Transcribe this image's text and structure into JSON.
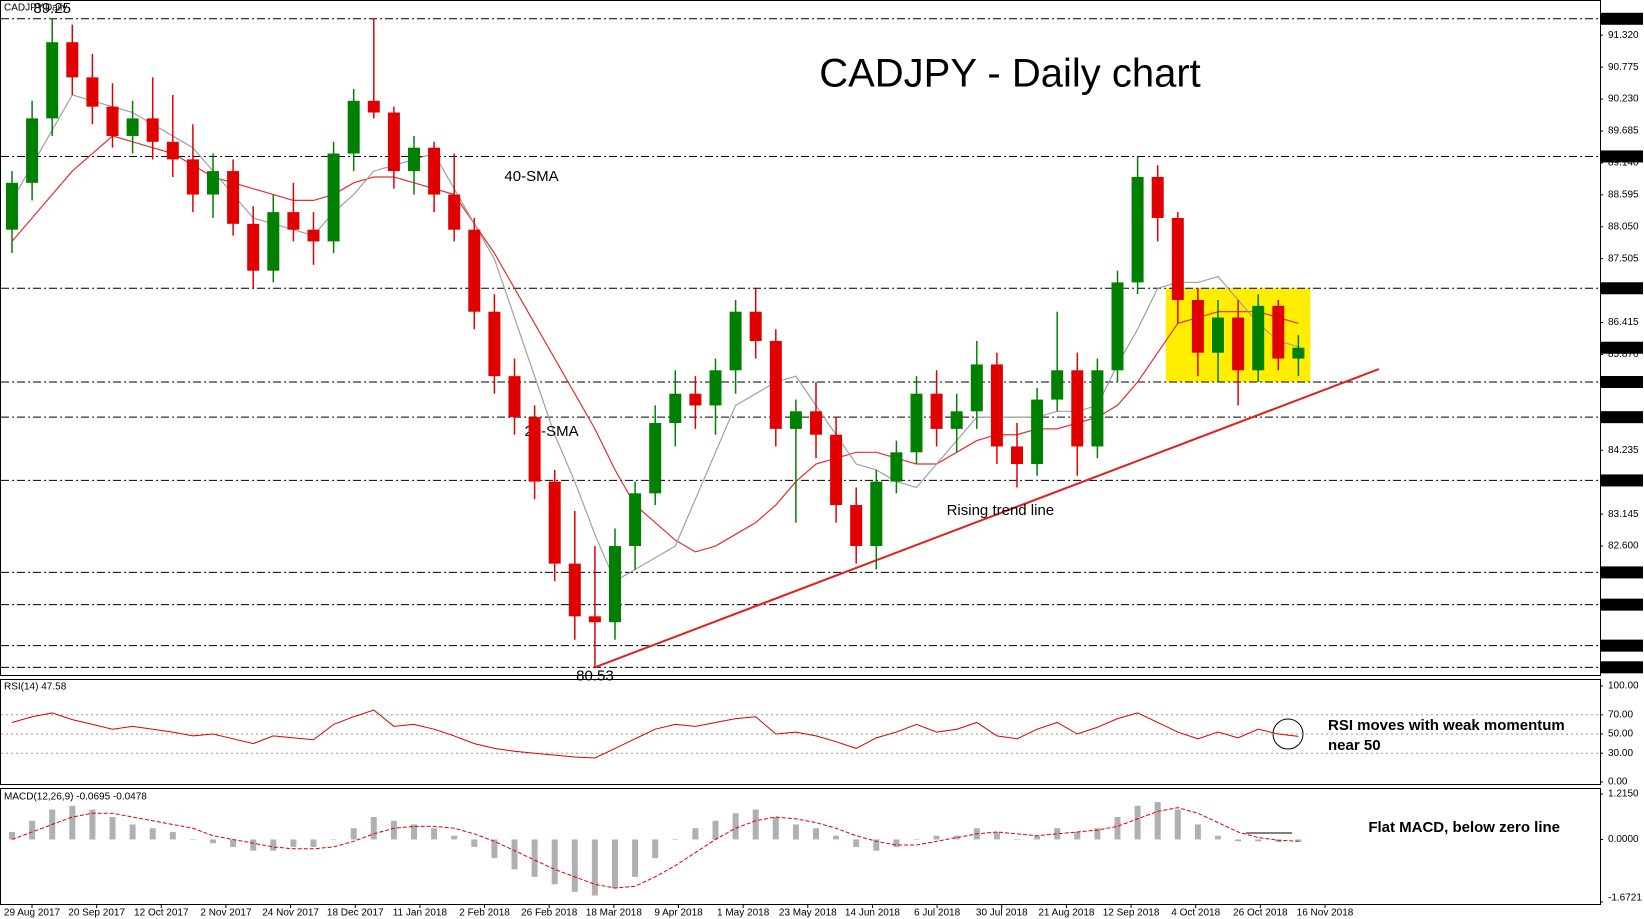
{
  "chart_data": {
    "type": "candlestick",
    "title": "CADJPY - Daily chart",
    "symbol_label": "CADJPY,Daily",
    "up_color": "#008000",
    "down_color": "#e00000",
    "x_labels": [
      "29 Aug 2017",
      "20 Sep 2017",
      "12 Oct 2017",
      "2 Nov 2017",
      "24 Nov 2017",
      "18 Dec 2017",
      "11 Jan 2018",
      "2 Feb 2018",
      "26 Feb 2018",
      "18 Mar 2018",
      "9 Apr 2018",
      "1 May 2018",
      "23 May 2018",
      "14 Jun 2018",
      "6 Jul 2018",
      "30 Jul 2018",
      "21 Aug 2018",
      "12 Sep 2018",
      "4 Oct 2018",
      "26 Oct 2018",
      "16 Nov 2018"
    ],
    "ohlc": {
      "open": [
        88.0,
        88.8,
        89.9,
        91.2,
        90.6,
        90.1,
        89.6,
        89.9,
        89.5,
        89.2,
        88.6,
        89.0,
        88.1,
        87.3,
        88.3,
        88.0,
        87.8,
        89.3,
        90.2,
        90.0,
        89.0,
        89.4,
        88.6,
        88.0,
        86.6,
        85.5,
        84.8,
        83.7,
        82.3,
        81.4,
        81.3,
        82.6,
        83.5,
        84.7,
        85.2,
        85.0,
        85.6,
        86.6,
        86.1,
        84.6,
        84.9,
        84.5,
        83.3,
        82.6,
        83.7,
        84.2,
        85.2,
        84.6,
        84.9,
        85.7,
        84.3,
        84.0,
        85.1,
        85.6,
        84.3,
        85.6,
        87.1,
        88.9,
        88.2,
        86.8,
        85.9,
        86.5,
        85.6,
        86.7,
        85.8
      ],
      "high": [
        89.0,
        90.2,
        91.6,
        91.5,
        91.0,
        90.5,
        90.2,
        90.6,
        90.3,
        89.8,
        89.3,
        89.2,
        88.4,
        88.6,
        88.8,
        88.3,
        89.5,
        90.4,
        91.6,
        90.1,
        89.6,
        89.5,
        89.3,
        88.2,
        86.9,
        85.8,
        85.0,
        83.9,
        83.2,
        82.6,
        82.9,
        83.7,
        85.0,
        85.6,
        85.5,
        85.8,
        86.8,
        87.0,
        86.3,
        85.1,
        85.4,
        84.8,
        83.6,
        83.9,
        84.4,
        85.5,
        85.6,
        85.2,
        86.1,
        85.9,
        84.7,
        85.3,
        86.6,
        85.9,
        85.8,
        87.3,
        89.25,
        89.1,
        88.3,
        87.0,
        86.8,
        86.8,
        86.9,
        86.8,
        86.2
      ],
      "low": [
        87.6,
        88.5,
        89.6,
        90.3,
        89.8,
        89.4,
        89.3,
        89.2,
        88.9,
        88.3,
        88.2,
        87.9,
        87.0,
        87.1,
        87.8,
        87.4,
        87.6,
        89.0,
        89.9,
        88.7,
        88.6,
        88.3,
        87.8,
        86.3,
        85.2,
        84.5,
        83.4,
        82.0,
        81.0,
        80.53,
        81.0,
        82.2,
        83.3,
        84.3,
        84.6,
        84.5,
        85.2,
        85.8,
        84.3,
        83.0,
        84.1,
        83.0,
        82.3,
        82.2,
        83.5,
        84.0,
        84.3,
        84.2,
        84.6,
        84.0,
        83.6,
        83.8,
        84.9,
        83.8,
        84.1,
        85.4,
        86.9,
        87.8,
        86.4,
        85.5,
        85.4,
        85.0,
        85.4,
        85.6,
        85.5
      ],
      "close": [
        88.8,
        89.9,
        91.2,
        90.6,
        90.1,
        89.6,
        89.9,
        89.5,
        89.2,
        88.6,
        89.0,
        88.1,
        87.3,
        88.3,
        88.0,
        87.8,
        89.3,
        90.2,
        90.0,
        89.0,
        89.4,
        88.6,
        88.0,
        86.6,
        85.5,
        84.8,
        83.7,
        82.3,
        81.4,
        81.3,
        82.6,
        83.5,
        84.7,
        85.2,
        85.0,
        85.6,
        86.6,
        86.1,
        84.6,
        84.9,
        84.5,
        83.3,
        82.6,
        83.7,
        84.2,
        85.2,
        84.6,
        84.9,
        85.7,
        84.3,
        84.0,
        85.1,
        85.6,
        84.3,
        85.6,
        87.1,
        88.9,
        88.2,
        86.8,
        85.9,
        86.5,
        85.6,
        86.7,
        85.8,
        85.985
      ]
    },
    "indicators": [
      {
        "name": "40-SMA",
        "color": "#e03030",
        "values": [
          87.8,
          88.2,
          88.6,
          89.0,
          89.3,
          89.6,
          89.5,
          89.4,
          89.3,
          89.1,
          88.9,
          88.8,
          88.7,
          88.6,
          88.5,
          88.5,
          88.6,
          88.8,
          88.9,
          88.9,
          88.8,
          88.7,
          88.6,
          88.1,
          87.6,
          87.0,
          86.4,
          85.8,
          85.2,
          84.6,
          83.9,
          83.3,
          83.0,
          82.7,
          82.5,
          82.6,
          82.8,
          83.0,
          83.3,
          83.7,
          84.0,
          84.1,
          84.2,
          84.2,
          84.1,
          84.0,
          84.0,
          84.2,
          84.4,
          84.5,
          84.5,
          84.6,
          84.6,
          84.7,
          84.8,
          85.0,
          85.4,
          85.9,
          86.4,
          86.5,
          86.6,
          86.6,
          86.6,
          86.5,
          86.4
        ]
      },
      {
        "name": "20-SMA",
        "color": "#a0a0a0",
        "values": [
          88.5,
          89.1,
          89.7,
          90.3,
          90.2,
          90.1,
          90.0,
          89.8,
          89.6,
          89.4,
          89.0,
          88.6,
          88.2,
          88.1,
          88.0,
          87.9,
          88.3,
          88.6,
          89.0,
          89.1,
          89.2,
          89.3,
          88.7,
          88.1,
          87.5,
          86.5,
          85.5,
          84.5,
          83.7,
          82.8,
          82.0,
          82.2,
          82.4,
          82.6,
          83.4,
          84.2,
          85.0,
          85.2,
          85.4,
          85.5,
          85.0,
          84.5,
          84.0,
          83.9,
          83.7,
          83.6,
          84.0,
          84.4,
          84.8,
          84.8,
          84.8,
          84.8,
          84.9,
          84.9,
          85.0,
          85.7,
          86.3,
          87.0,
          87.1,
          87.1,
          87.2,
          86.8,
          86.4,
          86.1,
          86.0
        ]
      }
    ],
    "ylim": [
      80.45,
      91.75
    ],
    "yticks": [
      {
        "value": 91.32,
        "label": "91.320"
      },
      {
        "value": 90.775,
        "label": "90.775"
      },
      {
        "value": 90.23,
        "label": "90.230"
      },
      {
        "value": 89.685,
        "label": "89.685"
      },
      {
        "value": 89.14,
        "label": "89.140"
      },
      {
        "value": 88.595,
        "label": "88.595"
      },
      {
        "value": 88.05,
        "label": "88.050"
      },
      {
        "value": 87.505,
        "label": "87.505"
      },
      {
        "value": 86.415,
        "label": "86.415"
      },
      {
        "value": 85.87,
        "label": "85.870"
      },
      {
        "value": 84.235,
        "label": "84.235"
      },
      {
        "value": 83.145,
        "label": "83.145"
      },
      {
        "value": 82.6,
        "label": "82.600"
      }
    ],
    "levels": [
      {
        "value": 91.6,
        "label": "91.600"
      },
      {
        "value": 89.25,
        "label": "89.250"
      },
      {
        "value": 87,
        "label": "87.000"
      },
      {
        "value": 85.4,
        "label": "85.400"
      },
      {
        "value": 84.8,
        "label": "84.800"
      },
      {
        "value": 83.72,
        "label": "83.720"
      },
      {
        "value": 82.15,
        "label": "82.150"
      },
      {
        "value": 81.6,
        "label": "81.600"
      },
      {
        "value": 80.9,
        "label": "80.900"
      },
      {
        "value": 80.53,
        "label": "80.530"
      }
    ],
    "current_price": {
      "value": 85.985,
      "label": "85.985"
    },
    "peak_label": "89.25",
    "trough_label": "80.53",
    "trend_line": {
      "label": "Rising trend line",
      "color": "#e02020",
      "start": [
        29,
        80.53
      ],
      "end": [
        68,
        85.62
      ]
    },
    "highlight": {
      "start": 58,
      "end": 64,
      "range": [
        85.4,
        87.0
      ],
      "color": "#ffee00"
    },
    "rsi": {
      "label": "RSI(14) 47.58",
      "color": "#e00000",
      "note": [
        "RSI moves with weak momentum",
        "near 50"
      ],
      "ylim": [
        0,
        100
      ],
      "yticks": [
        {
          "value": 100,
          "label": "100.00"
        },
        {
          "value": 70,
          "label": "70.00"
        },
        {
          "value": 50,
          "label": "50.00"
        },
        {
          "value": 30,
          "label": "30.00"
        },
        {
          "value": 0,
          "label": "0.00"
        }
      ],
      "values": [
        62,
        68,
        72,
        65,
        60,
        55,
        58,
        55,
        52,
        48,
        50,
        45,
        40,
        48,
        46,
        44,
        60,
        68,
        75,
        58,
        60,
        55,
        48,
        40,
        35,
        32,
        30,
        28,
        26,
        25,
        35,
        45,
        55,
        60,
        58,
        62,
        66,
        68,
        50,
        52,
        48,
        42,
        35,
        46,
        52,
        60,
        52,
        55,
        62,
        48,
        45,
        55,
        62,
        50,
        57,
        66,
        72,
        62,
        52,
        45,
        52,
        46,
        55,
        50,
        47.58
      ]
    },
    "macd": {
      "label": "MACD(12,26,9) -0.0695 -0.0478",
      "note": "Flat MACD, below zero line",
      "histogram_color": "#b0b0b0",
      "signal_color": "#e00000",
      "ylim": [
        -1.6721,
        1.215
      ],
      "yticks": [
        {
          "value": 1.215,
          "label": "1.2150"
        },
        {
          "value": 0,
          "label": "0.0000"
        },
        {
          "value": -1.6721,
          "label": "-1.6721"
        }
      ],
      "histogram": [
        0.2,
        0.5,
        0.8,
        0.9,
        0.8,
        0.6,
        0.4,
        0.3,
        0.2,
        0.0,
        -0.1,
        -0.2,
        -0.3,
        -0.3,
        -0.2,
        -0.2,
        0.0,
        0.3,
        0.6,
        0.5,
        0.4,
        0.3,
        0.1,
        -0.2,
        -0.5,
        -0.8,
        -1.0,
        -1.2,
        -1.4,
        -1.5,
        -1.3,
        -1.0,
        -0.5,
        0.0,
        0.3,
        0.5,
        0.7,
        0.8,
        0.6,
        0.4,
        0.3,
        0.1,
        -0.2,
        -0.3,
        -0.2,
        0.0,
        0.1,
        0.1,
        0.3,
        0.2,
        0.0,
        0.1,
        0.3,
        0.2,
        0.3,
        0.6,
        0.9,
        1.0,
        0.8,
        0.4,
        0.1,
        -0.05,
        -0.05,
        -0.07,
        -0.0695
      ],
      "signal": [
        0.0,
        0.2,
        0.4,
        0.6,
        0.7,
        0.7,
        0.6,
        0.5,
        0.4,
        0.3,
        0.1,
        0.0,
        -0.1,
        -0.2,
        -0.25,
        -0.25,
        -0.2,
        -0.05,
        0.15,
        0.3,
        0.35,
        0.35,
        0.3,
        0.15,
        -0.05,
        -0.3,
        -0.55,
        -0.8,
        -1.0,
        -1.2,
        -1.3,
        -1.25,
        -1.0,
        -0.7,
        -0.35,
        0.0,
        0.3,
        0.5,
        0.6,
        0.55,
        0.45,
        0.3,
        0.1,
        -0.05,
        -0.15,
        -0.15,
        -0.05,
        0.05,
        0.15,
        0.2,
        0.15,
        0.1,
        0.15,
        0.2,
        0.25,
        0.35,
        0.55,
        0.75,
        0.85,
        0.7,
        0.45,
        0.2,
        0.05,
        -0.02,
        -0.0478
      ]
    }
  }
}
